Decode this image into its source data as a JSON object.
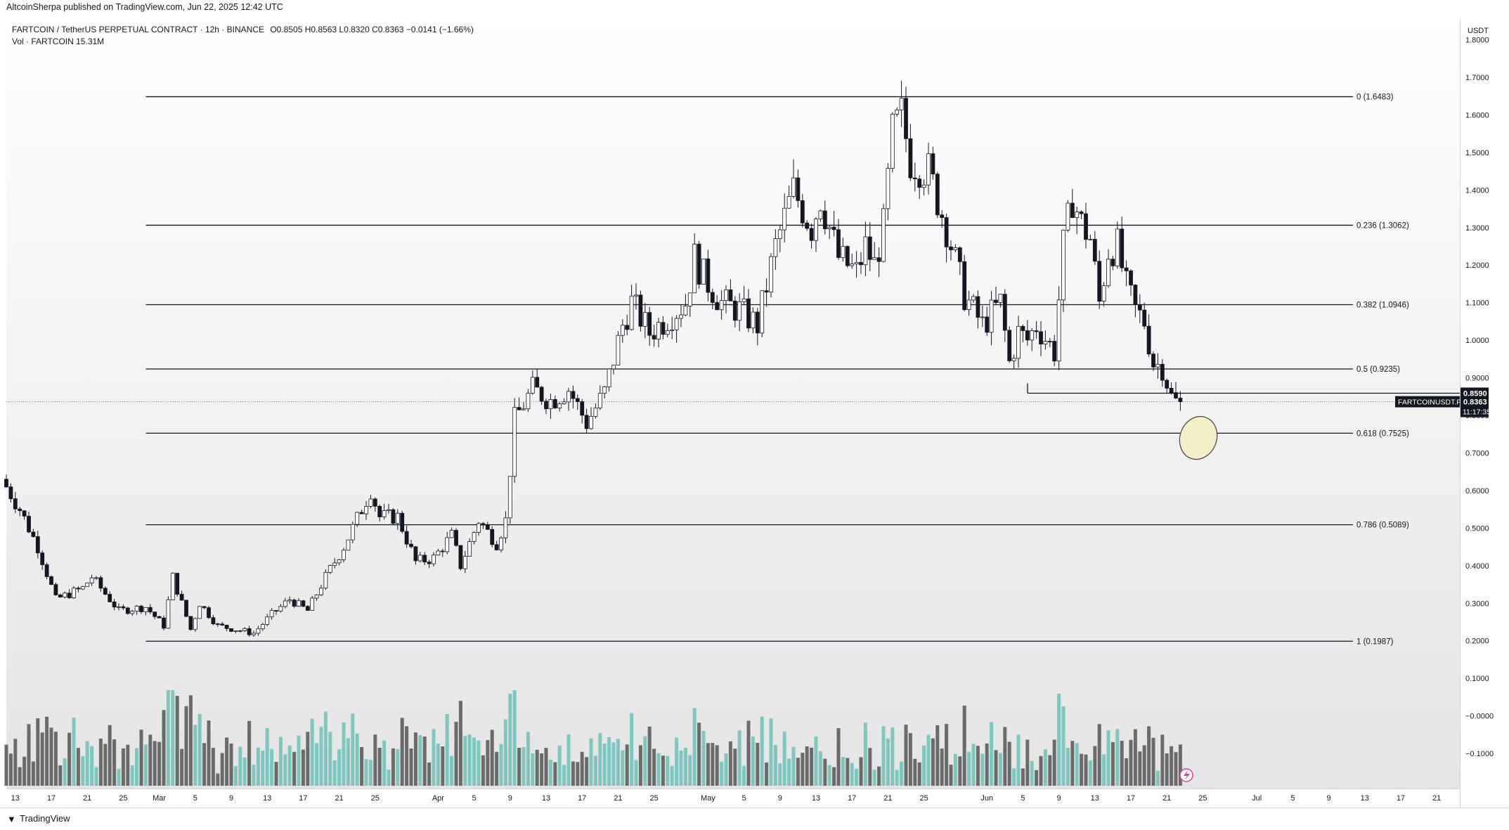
{
  "header": {
    "published_by": "AltcoinSherpa published on TradingView.com, Jun 22, 2025 12:42 UTC"
  },
  "legend": {
    "symbol_line": "FARTCOIN / TetherUS PERPETUAL CONTRACT · 12h · BINANCE",
    "ohlc": "O0.8505 H0.8563 L0.8320 C0.8363 −0.0141 (−1.66%)",
    "volume": "Vol · FARTCOIN  15.31M"
  },
  "footer": {
    "brand": "TradingView"
  },
  "colors": {
    "up": "#ffffff",
    "down": "#131722",
    "vol_up": "#7fc6c0",
    "vol_down": "#6b6b6b",
    "lines": "#131722",
    "highlight": "#f5efc7"
  },
  "chart_data": {
    "type": "candlestick",
    "timeframe": "12h",
    "y_axis": {
      "unit": "USDT",
      "range": [
        -0.14,
        1.9
      ],
      "ticks": [
        "1.8000",
        "1.7000",
        "1.6000",
        "1.5000",
        "1.4000",
        "1.3000",
        "1.2000",
        "1.1000",
        "1.0000",
        "0.9000",
        "0.8000",
        "0.7000",
        "0.6000",
        "0.5000",
        "0.4000",
        "0.3000",
        "0.2000",
        "0.1000",
        "−0.0000",
        "−0.1000"
      ]
    },
    "x_axis": {
      "start_date": "2025-02-12",
      "ticks": [
        {
          "label": "13",
          "day": 1
        },
        {
          "label": "17",
          "day": 5
        },
        {
          "label": "21",
          "day": 9
        },
        {
          "label": "25",
          "day": 13
        },
        {
          "label": "Mar",
          "day": 17
        },
        {
          "label": "5",
          "day": 21
        },
        {
          "label": "9",
          "day": 25
        },
        {
          "label": "13",
          "day": 29
        },
        {
          "label": "17",
          "day": 33
        },
        {
          "label": "21",
          "day": 37
        },
        {
          "label": "25",
          "day": 41
        },
        {
          "label": "Apr",
          "day": 48
        },
        {
          "label": "5",
          "day": 52
        },
        {
          "label": "9",
          "day": 56
        },
        {
          "label": "13",
          "day": 60
        },
        {
          "label": "17",
          "day": 64
        },
        {
          "label": "21",
          "day": 68
        },
        {
          "label": "25",
          "day": 72
        },
        {
          "label": "May",
          "day": 78
        },
        {
          "label": "5",
          "day": 82
        },
        {
          "label": "9",
          "day": 86
        },
        {
          "label": "13",
          "day": 90
        },
        {
          "label": "17",
          "day": 94
        },
        {
          "label": "21",
          "day": 98
        },
        {
          "label": "25",
          "day": 102
        },
        {
          "label": "Jun",
          "day": 109
        },
        {
          "label": "5",
          "day": 113
        },
        {
          "label": "9",
          "day": 117
        },
        {
          "label": "13",
          "day": 121
        },
        {
          "label": "17",
          "day": 125
        },
        {
          "label": "21",
          "day": 129
        },
        {
          "label": "25",
          "day": 133
        },
        {
          "label": "Jul",
          "day": 139
        },
        {
          "label": "5",
          "day": 143
        },
        {
          "label": "9",
          "day": 147
        },
        {
          "label": "13",
          "day": 151
        },
        {
          "label": "17",
          "day": 155
        },
        {
          "label": "21",
          "day": 159
        }
      ]
    },
    "price_path": [
      [
        0,
        0.63
      ],
      [
        2,
        0.55
      ],
      [
        4,
        0.45
      ],
      [
        6,
        0.31
      ],
      [
        9,
        0.34
      ],
      [
        10,
        0.37
      ],
      [
        13,
        0.28
      ],
      [
        16,
        0.29
      ],
      [
        18,
        0.24
      ],
      [
        19,
        0.37
      ],
      [
        21,
        0.23
      ],
      [
        22,
        0.3
      ],
      [
        24,
        0.24
      ],
      [
        26,
        0.23
      ],
      [
        28,
        0.22
      ],
      [
        30,
        0.27
      ],
      [
        32,
        0.31
      ],
      [
        34,
        0.28
      ],
      [
        36,
        0.37
      ],
      [
        38,
        0.45
      ],
      [
        40,
        0.55
      ],
      [
        41,
        0.6
      ],
      [
        42,
        0.53
      ],
      [
        44,
        0.53
      ],
      [
        46,
        0.41
      ],
      [
        48,
        0.42
      ],
      [
        50,
        0.48
      ],
      [
        51,
        0.4
      ],
      [
        53,
        0.52
      ],
      [
        55,
        0.46
      ],
      [
        56,
        0.52
      ],
      [
        57,
        0.79
      ],
      [
        59,
        0.87
      ],
      [
        61,
        0.84
      ],
      [
        63,
        0.87
      ],
      [
        65,
        0.78
      ],
      [
        67,
        0.86
      ],
      [
        68,
        0.95
      ],
      [
        69,
        1.04
      ],
      [
        70,
        1.1
      ],
      [
        72,
        1.02
      ],
      [
        74,
        1.06
      ],
      [
        76,
        1.1
      ],
      [
        77,
        1.22
      ],
      [
        78,
        1.17
      ],
      [
        80,
        1.1
      ],
      [
        82,
        1.08
      ],
      [
        84,
        1.04
      ],
      [
        86,
        1.25
      ],
      [
        88,
        1.4
      ],
      [
        90,
        1.3
      ],
      [
        91,
        1.38
      ],
      [
        93,
        1.22
      ],
      [
        95,
        1.18
      ],
      [
        96,
        1.25
      ],
      [
        97,
        1.2
      ],
      [
        98,
        1.3
      ],
      [
        99,
        1.55
      ],
      [
        100,
        1.6
      ],
      [
        101,
        1.48
      ],
      [
        103,
        1.45
      ],
      [
        105,
        1.3
      ],
      [
        107,
        1.12
      ],
      [
        109,
        1.04
      ],
      [
        111,
        1.1
      ],
      [
        112,
        0.94
      ],
      [
        113,
        1.02
      ],
      [
        114,
        1.0
      ],
      [
        115,
        1.04
      ],
      [
        117,
        0.97
      ],
      [
        118,
        1.25
      ],
      [
        119,
        1.38
      ],
      [
        120,
        1.31
      ],
      [
        121,
        1.27
      ],
      [
        122,
        1.1
      ],
      [
        123,
        1.24
      ],
      [
        124,
        1.25
      ],
      [
        125,
        1.14
      ],
      [
        126,
        1.08
      ],
      [
        127,
        1.05
      ],
      [
        128,
        0.94
      ],
      [
        129,
        0.93
      ],
      [
        130,
        0.85
      ],
      [
        130.5,
        0.8363
      ]
    ],
    "current_price": 0.8363,
    "marked_level": 0.859,
    "price_tags": [
      {
        "label": "0.8590",
        "value": 0.859
      },
      {
        "label": "FARTCOINUSDT.P",
        "value": 0.8363
      },
      {
        "label": "0.8363",
        "value": 0.8363
      },
      {
        "label": "11:17:35",
        "value": 0.8363
      }
    ],
    "fibonacci": {
      "from_day": 15.5,
      "to_day": 164,
      "levels": [
        {
          "label": "0 (1.6483)",
          "value": 1.6483
        },
        {
          "label": "0.236 (1.3062)",
          "value": 1.3062
        },
        {
          "label": "0.382 (1.0946)",
          "value": 1.0946
        },
        {
          "label": "0.5 (0.9235)",
          "value": 0.9235
        },
        {
          "label": "0.618 (0.7525)",
          "value": 0.7525
        },
        {
          "label": "0.786 (0.5089)",
          "value": 0.5089
        },
        {
          "label": "1 (0.1987)",
          "value": 0.1987
        }
      ]
    },
    "target_zone": {
      "day": 132.5,
      "price": 0.74
    }
  }
}
